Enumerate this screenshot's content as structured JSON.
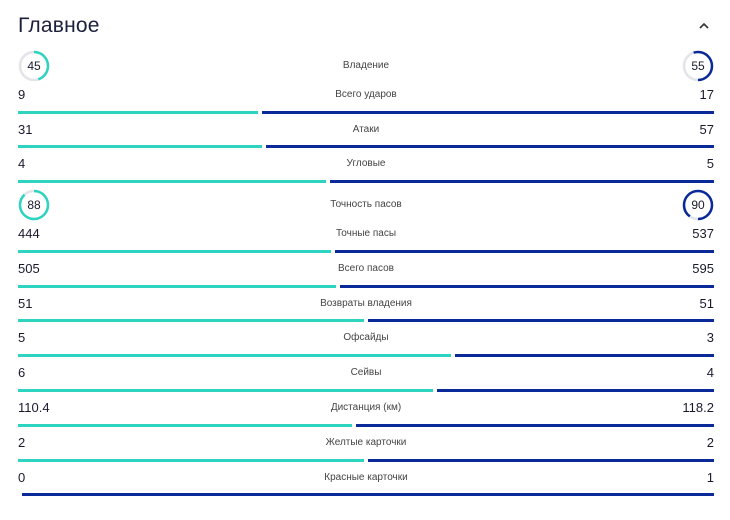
{
  "section": {
    "title": "Главное"
  },
  "colors": {
    "home": "#2dd4bf",
    "away": "#0a2a9a",
    "track": "#e2e4ea"
  },
  "icons": {
    "collapse": "chevron-up-icon"
  },
  "stats": [
    {
      "label": "Владение",
      "home": "45",
      "away": "55",
      "kind": "percent"
    },
    {
      "label": "Всего ударов",
      "home": "9",
      "away": "17",
      "kind": "bar"
    },
    {
      "label": "Атаки",
      "home": "31",
      "away": "57",
      "kind": "bar"
    },
    {
      "label": "Угловые",
      "home": "4",
      "away": "5",
      "kind": "bar"
    },
    {
      "label": "Точность пасов",
      "home": "88",
      "away": "90",
      "kind": "percent"
    },
    {
      "label": "Точные пасы",
      "home": "444",
      "away": "537",
      "kind": "bar"
    },
    {
      "label": "Всего пасов",
      "home": "505",
      "away": "595",
      "kind": "bar"
    },
    {
      "label": "Возвраты владения",
      "home": "51",
      "away": "51",
      "kind": "bar"
    },
    {
      "label": "Офсайды",
      "home": "5",
      "away": "3",
      "kind": "bar"
    },
    {
      "label": "Сейвы",
      "home": "6",
      "away": "4",
      "kind": "bar"
    },
    {
      "label": "Дистанция (км)",
      "home": "110.4",
      "away": "118.2",
      "kind": "bar"
    },
    {
      "label": "Желтые карточки",
      "home": "2",
      "away": "2",
      "kind": "bar"
    },
    {
      "label": "Красные карточки",
      "home": "0",
      "away": "1",
      "kind": "bar"
    }
  ]
}
